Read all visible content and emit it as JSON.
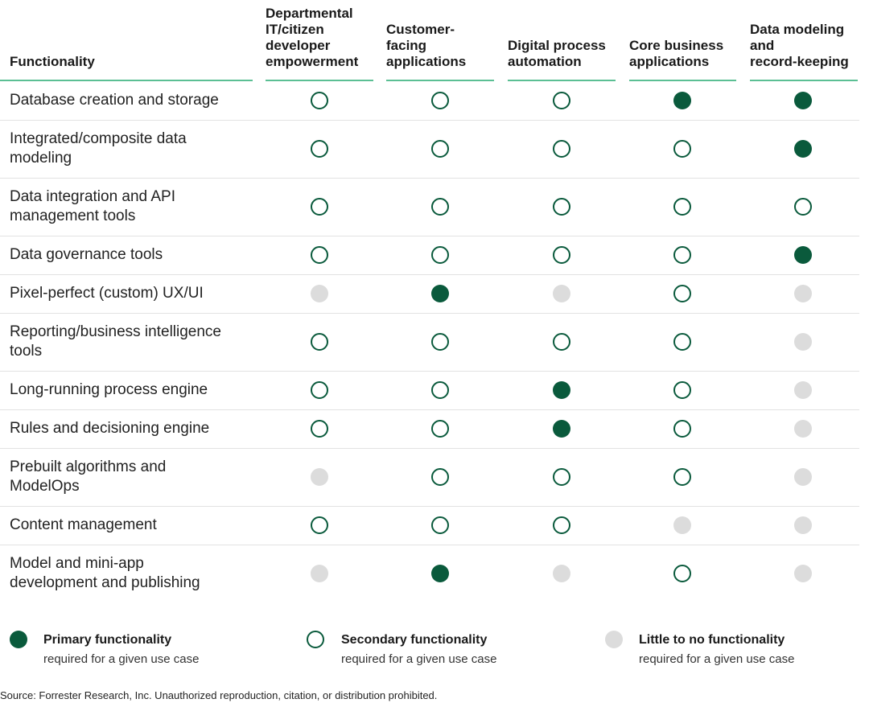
{
  "header": {
    "functionality": "Functionality",
    "columns": [
      [
        "Departmental",
        "IT/citizen",
        "developer",
        "empowerment"
      ],
      [
        "Customer-",
        "facing",
        "applications"
      ],
      [
        "Digital process",
        "automation"
      ],
      [
        "Core business",
        "applications"
      ],
      [
        "Data modeling",
        "and",
        "record-keeping"
      ]
    ]
  },
  "rows": [
    {
      "label": [
        "Database creation and storage"
      ],
      "values": [
        "secondary",
        "secondary",
        "secondary",
        "primary",
        "primary"
      ]
    },
    {
      "label": [
        "Integrated/composite data",
        "modeling"
      ],
      "values": [
        "secondary",
        "secondary",
        "secondary",
        "secondary",
        "primary"
      ]
    },
    {
      "label": [
        "Data integration and API",
        "management tools"
      ],
      "values": [
        "secondary",
        "secondary",
        "secondary",
        "secondary",
        "secondary"
      ]
    },
    {
      "label": [
        "Data governance tools"
      ],
      "values": [
        "secondary",
        "secondary",
        "secondary",
        "secondary",
        "primary"
      ]
    },
    {
      "label": [
        "Pixel-perfect (custom) UX/UI"
      ],
      "values": [
        "none",
        "primary",
        "none",
        "secondary",
        "none"
      ]
    },
    {
      "label": [
        "Reporting/business intelligence",
        "tools"
      ],
      "values": [
        "secondary",
        "secondary",
        "secondary",
        "secondary",
        "none"
      ]
    },
    {
      "label": [
        "Long-running process engine"
      ],
      "values": [
        "secondary",
        "secondary",
        "primary",
        "secondary",
        "none"
      ]
    },
    {
      "label": [
        "Rules and decisioning engine"
      ],
      "values": [
        "secondary",
        "secondary",
        "primary",
        "secondary",
        "none"
      ]
    },
    {
      "label": [
        "Prebuilt algorithms and",
        "ModelOps"
      ],
      "values": [
        "none",
        "secondary",
        "secondary",
        "secondary",
        "none"
      ]
    },
    {
      "label": [
        "Content management"
      ],
      "values": [
        "secondary",
        "secondary",
        "secondary",
        "none",
        "none"
      ]
    },
    {
      "label": [
        "Model and mini-app",
        "development and publishing"
      ],
      "values": [
        "none",
        "primary",
        "none",
        "secondary",
        "none"
      ]
    }
  ],
  "legend": {
    "primary": {
      "title": "Primary functionality",
      "sub": "required for a given use case"
    },
    "secondary": {
      "title": "Secondary functionality",
      "sub": "required for a given use case"
    },
    "none": {
      "title": "Little to no functionality",
      "sub": "required for a given use case"
    }
  },
  "source": "Source: Forrester Research, Inc. Unauthorized reproduction, citation, or distribution prohibited.",
  "colors": {
    "primary": "#0a5a3c",
    "accent_line": "#5bbf94",
    "none": "#dcdcdc"
  }
}
